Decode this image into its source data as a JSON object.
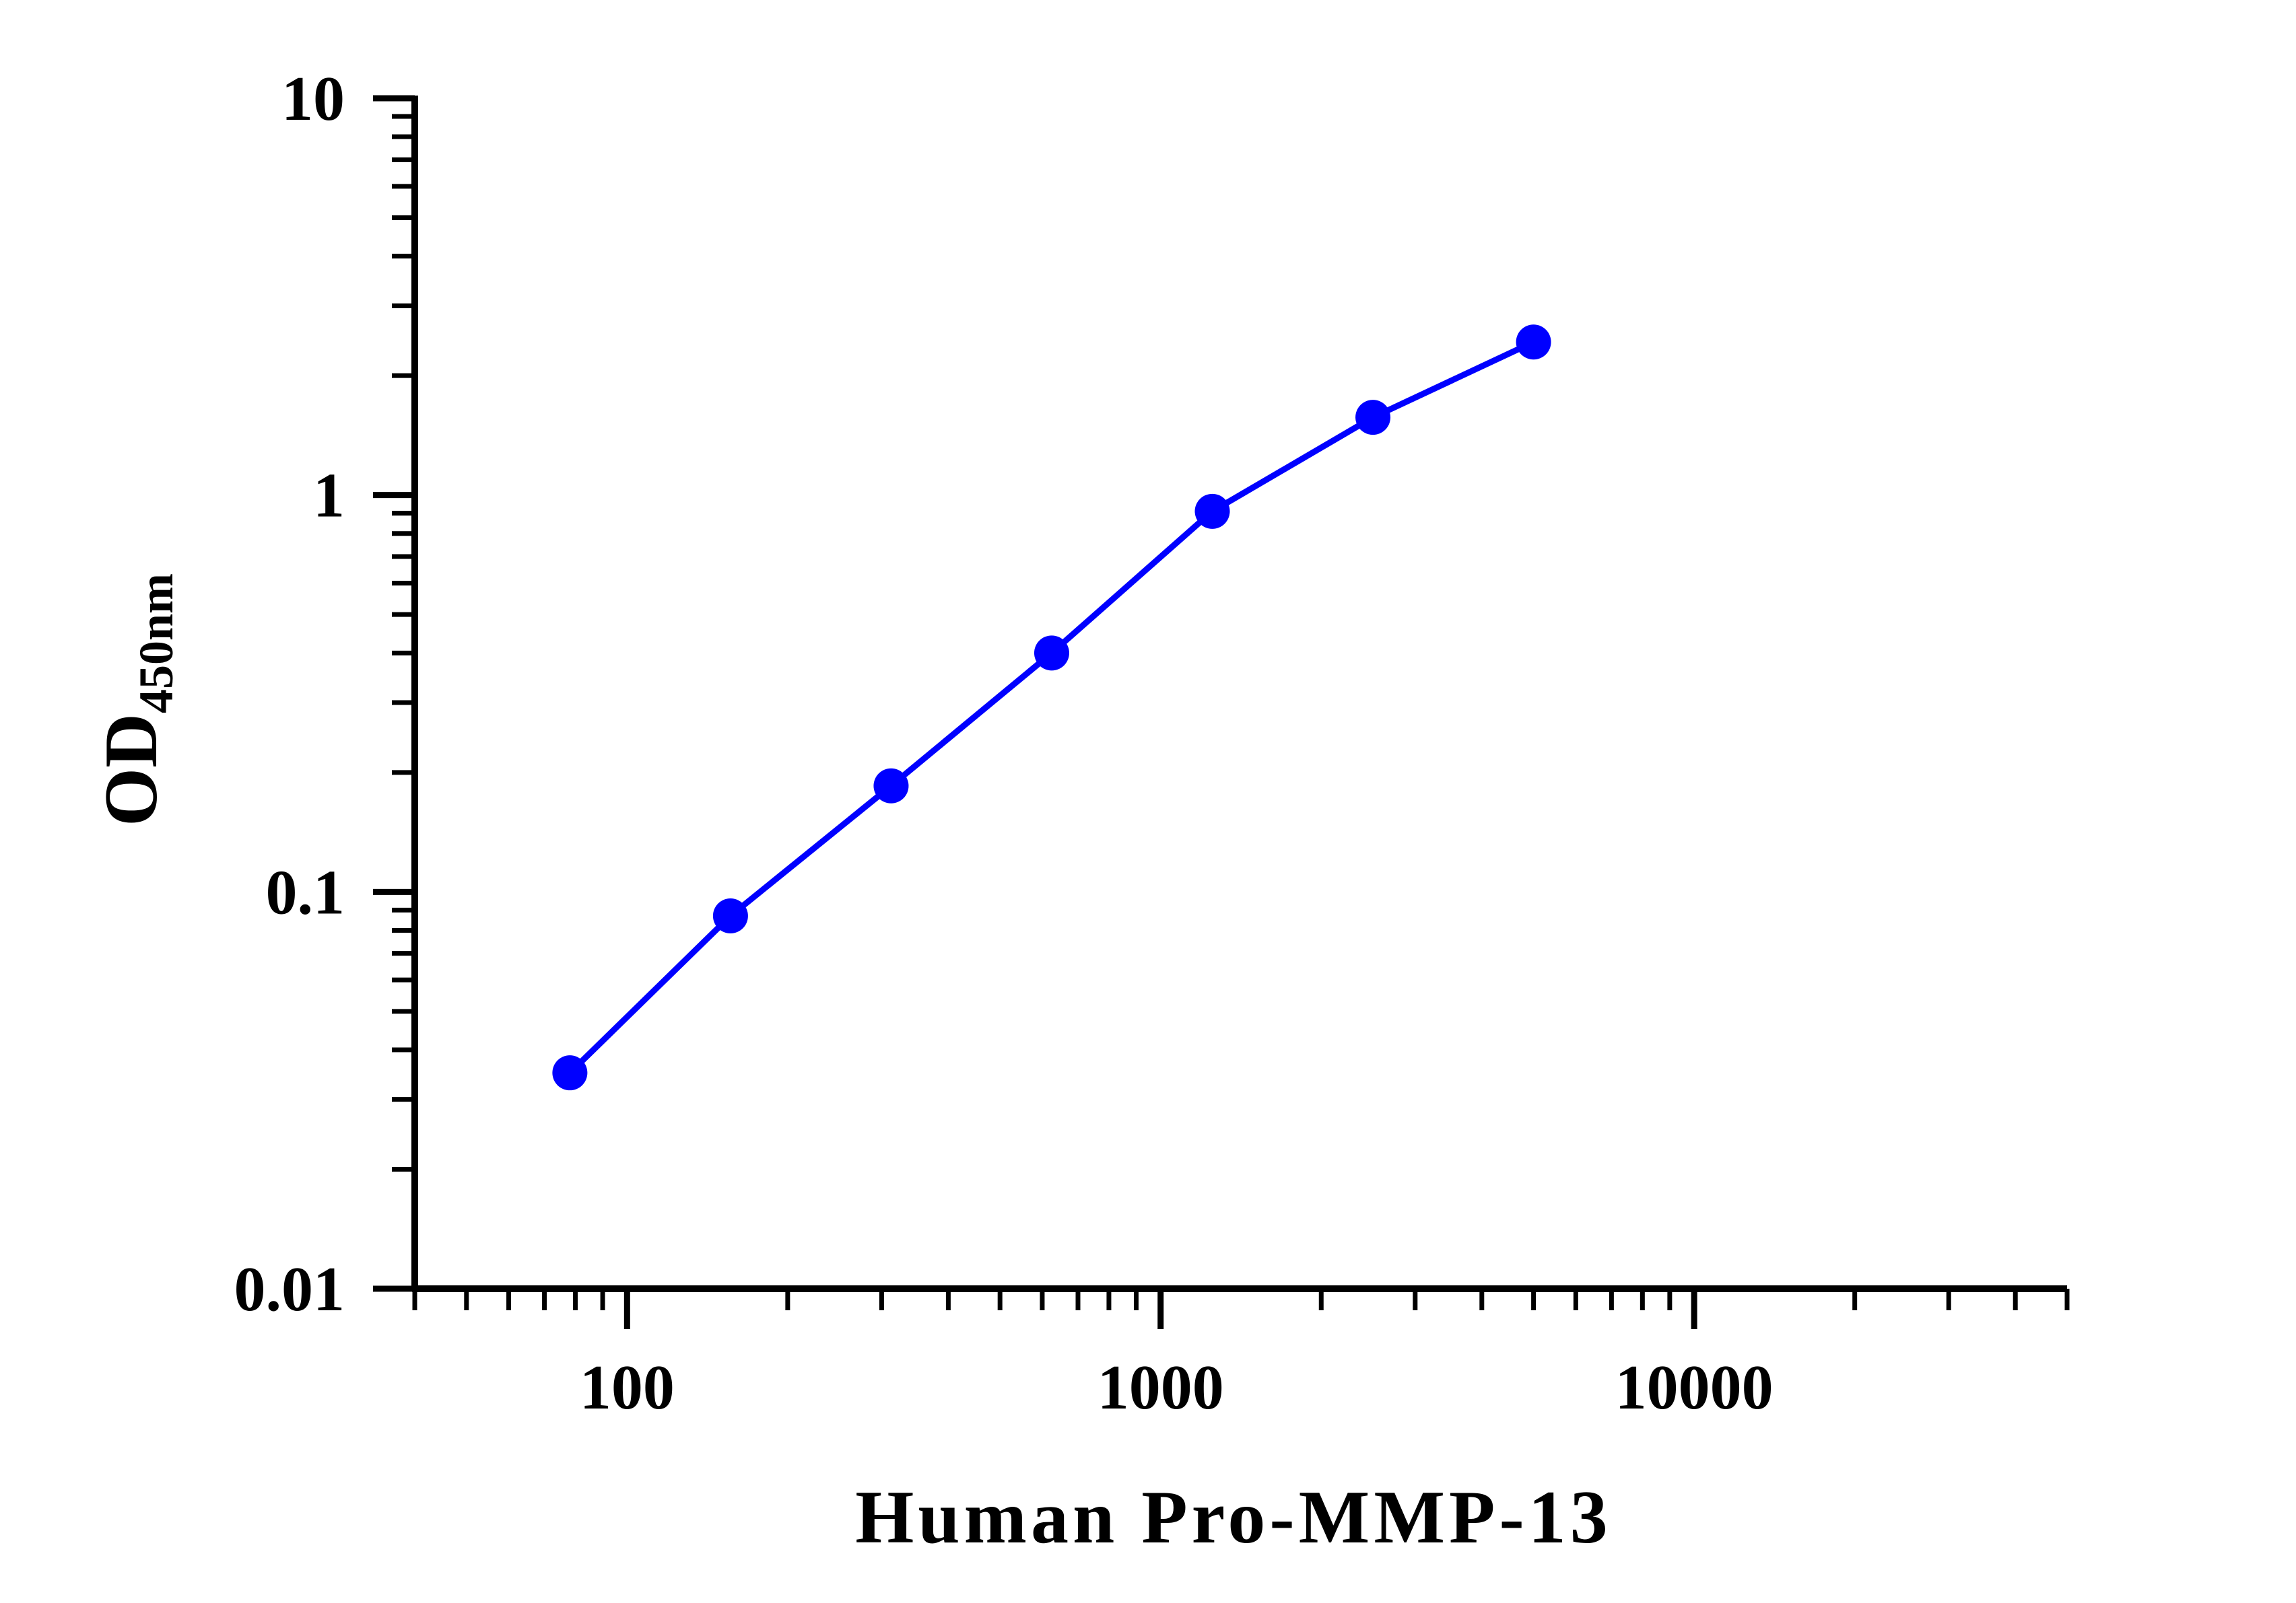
{
  "chart_data": {
    "type": "line",
    "xlabel": "Human Pro-MMP-13",
    "ylabel": "OD",
    "ylabel_subscript": "450nm",
    "x_scale": "log",
    "y_scale": "log",
    "xlim": [
      40,
      50000
    ],
    "ylim": [
      0.01,
      10
    ],
    "x_ticks": [
      {
        "value": 100,
        "label": "100"
      },
      {
        "value": 1000,
        "label": "1000"
      },
      {
        "value": 10000,
        "label": "10000"
      }
    ],
    "y_ticks": [
      {
        "value": 0.01,
        "label": "0.01"
      },
      {
        "value": 0.1,
        "label": "0.1"
      },
      {
        "value": 1,
        "label": "1"
      },
      {
        "value": 10,
        "label": "10"
      }
    ],
    "grid": false,
    "legend": "none",
    "series": [
      {
        "color": "#0000ff",
        "marker": "circle",
        "x": [
          78.125,
          156.25,
          312.5,
          625,
          1250,
          2500,
          5000
        ],
        "y": [
          0.035,
          0.087,
          0.185,
          0.4,
          0.91,
          1.57,
          2.43
        ]
      }
    ]
  }
}
